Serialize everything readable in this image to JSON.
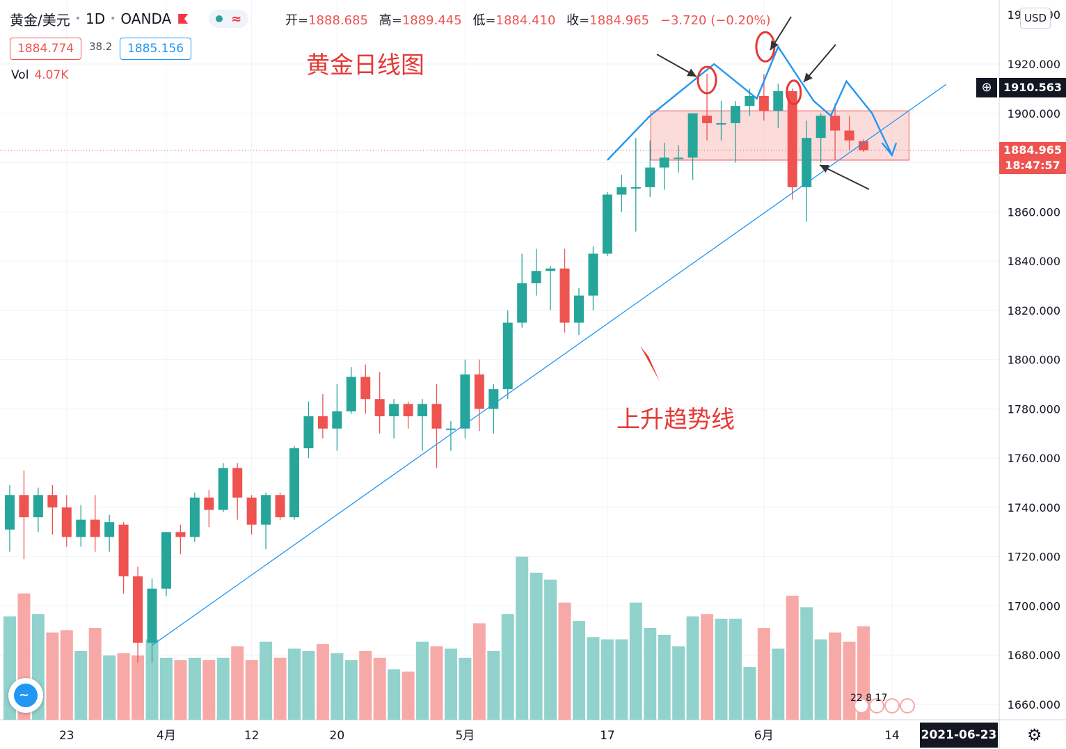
{
  "header": {
    "symbol": "黄金/美元",
    "interval": "1D",
    "source": "OANDA",
    "open_label": "开=",
    "open": "1888.685",
    "high_label": "高=",
    "high": "1889.445",
    "low_label": "低=",
    "low": "1884.410",
    "close_label": "收=",
    "close": "1884.965",
    "change": "−3.720 (−0.20%)"
  },
  "quote": {
    "bid": "1884.774",
    "spread": "38.2",
    "ask": "1885.156"
  },
  "volume": {
    "label": "Vol",
    "value": "4.07K"
  },
  "annotations": {
    "title": "黄金日线图",
    "trendline": "上升趋势线"
  },
  "price_axis": {
    "currency": "USD",
    "crosshair_price": "1910.563",
    "last_price": "1884.965",
    "countdown": "18:47:57"
  },
  "time_axis": {
    "crosshair_date": "2021-06-23"
  },
  "events_text": "22 8 17",
  "colors": {
    "up": "#26a69a",
    "down": "#ef5350",
    "up_volume": "#92d2cc",
    "down_volume": "#f7a9a7",
    "annotation_blue": "#2196f3",
    "annotation_red": "#e53935",
    "annotation_box_fill": "#f9c9c7"
  },
  "chart_data": {
    "type": "candlestick",
    "symbol": "黄金/美元",
    "ylim": [
      1650,
      1938
    ],
    "y_ticks": [
      1660,
      1680,
      1700,
      1720,
      1740,
      1760,
      1780,
      1800,
      1820,
      1840,
      1860,
      1880,
      1900,
      1920
    ],
    "x_ticks": [
      {
        "index": 4,
        "label": "23"
      },
      {
        "index": 11,
        "label": "4月"
      },
      {
        "index": 17,
        "label": "12"
      },
      {
        "index": 23,
        "label": "20"
      },
      {
        "index": 32,
        "label": "5月"
      },
      {
        "index": 42,
        "label": "17"
      },
      {
        "index": 53,
        "label": "6月"
      },
      {
        "index": 62,
        "label": "14"
      }
    ],
    "last_index_position": 63.6,
    "volume_max": 8.0,
    "candles": [
      {
        "o": 1731,
        "h": 1749,
        "l": 1722,
        "c": 1745,
        "v": 4.5
      },
      {
        "o": 1745,
        "h": 1755,
        "l": 1719,
        "c": 1736,
        "v": 5.5
      },
      {
        "o": 1736,
        "h": 1748,
        "l": 1730,
        "c": 1745,
        "v": 4.6
      },
      {
        "o": 1745,
        "h": 1749,
        "l": 1729,
        "c": 1740,
        "v": 3.8
      },
      {
        "o": 1740,
        "h": 1745,
        "l": 1724,
        "c": 1728,
        "v": 3.9
      },
      {
        "o": 1728,
        "h": 1741,
        "l": 1724,
        "c": 1735,
        "v": 3.0
      },
      {
        "o": 1735,
        "h": 1745,
        "l": 1722,
        "c": 1728,
        "v": 4.0
      },
      {
        "o": 1728,
        "h": 1737,
        "l": 1722,
        "c": 1734,
        "v": 2.8
      },
      {
        "o": 1733,
        "h": 1734,
        "l": 1705,
        "c": 1712,
        "v": 2.9
      },
      {
        "o": 1712,
        "h": 1716,
        "l": 1677,
        "c": 1685,
        "v": 2.8
      },
      {
        "o": 1685,
        "h": 1711,
        "l": 1677,
        "c": 1707,
        "v": 3.5
      },
      {
        "o": 1707,
        "h": 1730,
        "l": 1704,
        "c": 1730,
        "v": 2.7
      },
      {
        "o": 1730,
        "h": 1733,
        "l": 1721,
        "c": 1728,
        "v": 2.6
      },
      {
        "o": 1728,
        "h": 1746,
        "l": 1726,
        "c": 1744,
        "v": 2.7
      },
      {
        "o": 1744,
        "h": 1747,
        "l": 1732,
        "c": 1739,
        "v": 2.6
      },
      {
        "o": 1739,
        "h": 1758,
        "l": 1738,
        "c": 1756,
        "v": 2.7
      },
      {
        "o": 1756,
        "h": 1758,
        "l": 1735,
        "c": 1744,
        "v": 3.2
      },
      {
        "o": 1744,
        "h": 1745,
        "l": 1729,
        "c": 1733,
        "v": 2.6
      },
      {
        "o": 1733,
        "h": 1746,
        "l": 1723,
        "c": 1745,
        "v": 3.4
      },
      {
        "o": 1745,
        "h": 1746,
        "l": 1735,
        "c": 1736,
        "v": 2.7
      },
      {
        "o": 1736,
        "h": 1765,
        "l": 1735,
        "c": 1764,
        "v": 3.1
      },
      {
        "o": 1764,
        "h": 1783,
        "l": 1760,
        "c": 1777,
        "v": 3.0
      },
      {
        "o": 1777,
        "h": 1786,
        "l": 1768,
        "c": 1772,
        "v": 3.3
      },
      {
        "o": 1772,
        "h": 1790,
        "l": 1763,
        "c": 1779,
        "v": 2.9
      },
      {
        "o": 1779,
        "h": 1797,
        "l": 1778,
        "c": 1793,
        "v": 2.6
      },
      {
        "o": 1793,
        "h": 1798,
        "l": 1778,
        "c": 1784,
        "v": 3.0
      },
      {
        "o": 1784,
        "h": 1795,
        "l": 1770,
        "c": 1777,
        "v": 2.7
      },
      {
        "o": 1777,
        "h": 1784,
        "l": 1768,
        "c": 1782,
        "v": 2.2
      },
      {
        "o": 1782,
        "h": 1783,
        "l": 1772,
        "c": 1777,
        "v": 2.1
      },
      {
        "o": 1777,
        "h": 1784,
        "l": 1763,
        "c": 1782,
        "v": 3.4
      },
      {
        "o": 1782,
        "h": 1790,
        "l": 1756,
        "c": 1772,
        "v": 3.2
      },
      {
        "o": 1772,
        "h": 1775,
        "l": 1763,
        "c": 1772,
        "v": 3.1
      },
      {
        "o": 1772,
        "h": 1800,
        "l": 1768,
        "c": 1794,
        "v": 2.7
      },
      {
        "o": 1794,
        "h": 1800,
        "l": 1771,
        "c": 1780,
        "v": 4.2
      },
      {
        "o": 1780,
        "h": 1790,
        "l": 1770,
        "c": 1788,
        "v": 3.0
      },
      {
        "o": 1788,
        "h": 1820,
        "l": 1784,
        "c": 1815,
        "v": 4.6
      },
      {
        "o": 1815,
        "h": 1843,
        "l": 1813,
        "c": 1831,
        "v": 7.1
      },
      {
        "o": 1831,
        "h": 1845,
        "l": 1826,
        "c": 1836,
        "v": 6.4
      },
      {
        "o": 1836,
        "h": 1838,
        "l": 1820,
        "c": 1837,
        "v": 6.1
      },
      {
        "o": 1837,
        "h": 1845,
        "l": 1811,
        "c": 1815,
        "v": 5.1
      },
      {
        "o": 1815,
        "h": 1829,
        "l": 1810,
        "c": 1826,
        "v": 4.3
      },
      {
        "o": 1826,
        "h": 1846,
        "l": 1820,
        "c": 1843,
        "v": 3.6
      },
      {
        "o": 1843,
        "h": 1868,
        "l": 1842,
        "c": 1867,
        "v": 3.5
      },
      {
        "o": 1867,
        "h": 1875,
        "l": 1860,
        "c": 1870,
        "v": 3.5
      },
      {
        "o": 1870,
        "h": 1890,
        "l": 1852,
        "c": 1870,
        "v": 5.1
      },
      {
        "o": 1870,
        "h": 1889,
        "l": 1866,
        "c": 1878,
        "v": 4.0
      },
      {
        "o": 1878,
        "h": 1888,
        "l": 1869,
        "c": 1882,
        "v": 3.7
      },
      {
        "o": 1882,
        "h": 1887,
        "l": 1876,
        "c": 1882,
        "v": 3.2
      },
      {
        "o": 1882,
        "h": 1899,
        "l": 1873,
        "c": 1900,
        "v": 4.5
      },
      {
        "o": 1899,
        "h": 1916,
        "l": 1889,
        "c": 1896,
        "v": 4.6
      },
      {
        "o": 1896,
        "h": 1905,
        "l": 1889,
        "c": 1896,
        "v": 4.4
      },
      {
        "o": 1896,
        "h": 1905,
        "l": 1880,
        "c": 1903,
        "v": 4.4
      },
      {
        "o": 1903,
        "h": 1910,
        "l": 1899,
        "c": 1907,
        "v": 2.3
      },
      {
        "o": 1907,
        "h": 1916,
        "l": 1897,
        "c": 1901,
        "v": 4.0
      },
      {
        "o": 1901,
        "h": 1912,
        "l": 1894,
        "c": 1909,
        "v": 3.1
      },
      {
        "o": 1909,
        "h": 1910,
        "l": 1865,
        "c": 1870,
        "v": 5.4
      },
      {
        "o": 1870,
        "h": 1897,
        "l": 1856,
        "c": 1890,
        "v": 4.9
      },
      {
        "o": 1890,
        "h": 1900,
        "l": 1880,
        "c": 1899,
        "v": 3.5
      },
      {
        "o": 1899,
        "h": 1904,
        "l": 1881,
        "c": 1893,
        "v": 3.8
      },
      {
        "o": 1893,
        "h": 1899,
        "l": 1885,
        "c": 1889,
        "v": 3.4
      },
      {
        "o": 1888.685,
        "h": 1889.445,
        "l": 1884.41,
        "c": 1884.965,
        "v": 4.07
      }
    ]
  }
}
